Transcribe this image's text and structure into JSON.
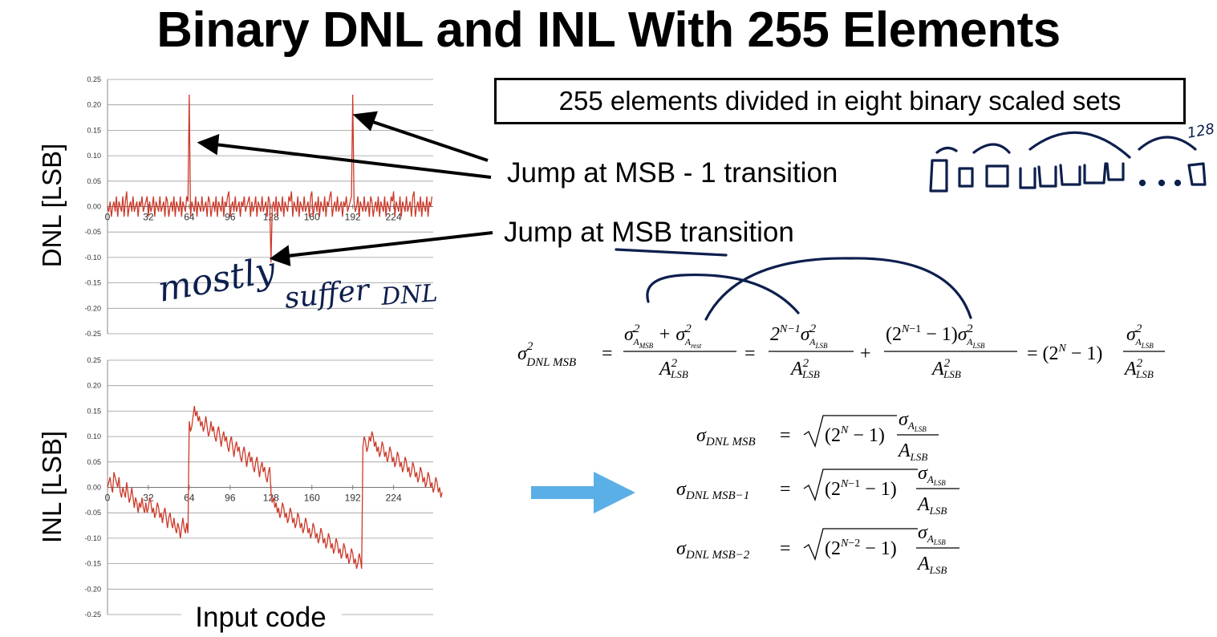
{
  "slide": {
    "title": "Binary DNL and INL With 255 Elements",
    "boxed_note": "255 elements divided in eight binary scaled sets",
    "callout_msb_minus_1": "Jump at MSB - 1 transition",
    "callout_msb": "Jump at MSB transition",
    "handwriting": {
      "note_words": [
        "mostly",
        "suffer",
        "DNL"
      ],
      "count": "128"
    },
    "colors": {
      "trace": "#cc3a2a",
      "ink": "#0d1f4d",
      "arrow_fill": "#5aafe6",
      "axis": "#888888"
    }
  },
  "chart_data": [
    {
      "type": "line",
      "title": "",
      "ylabel": "DNL [LSB]",
      "xlabel": "",
      "x_tick_labels": [
        "0",
        "32",
        "64",
        "96",
        "128",
        "160",
        "192",
        "224"
      ],
      "y_tick_labels": [
        "0.25",
        "0.20",
        "0.15",
        "0.10",
        "0.05",
        "0.00",
        "-0.05",
        "-0.10",
        "-0.15",
        "-0.20",
        "-0.25"
      ],
      "xlim": [
        0,
        255
      ],
      "ylim": [
        -0.25,
        0.25
      ],
      "grid": true,
      "series": [
        {
          "x_step": 1,
          "values": [
            0.0,
            -0.01,
            0.01,
            -0.02,
            0.0,
            0.01,
            -0.01,
            0.02,
            -0.02,
            0.01,
            0.0,
            -0.01,
            0.02,
            -0.02,
            0.01,
            0.03,
            -0.02,
            0.0,
            0.01,
            -0.01,
            0.02,
            -0.01,
            0.0,
            0.01,
            -0.02,
            0.01,
            0.0,
            0.02,
            -0.01,
            0.0,
            0.01,
            0.02,
            -0.02,
            0.01,
            -0.01,
            0.0,
            0.02,
            -0.02,
            0.01,
            0.0,
            -0.01,
            0.02,
            -0.01,
            0.0,
            0.01,
            -0.02,
            0.02,
            0.01,
            -0.02,
            0.0,
            0.01,
            -0.01,
            0.02,
            -0.02,
            0.01,
            0.0,
            -0.01,
            0.02,
            -0.02,
            0.01,
            0.0,
            -0.01,
            0.02,
            0.01,
            0.22,
            -0.02,
            0.01,
            0.0,
            -0.01,
            0.02,
            -0.02,
            0.01,
            0.0,
            -0.01,
            0.02,
            -0.01,
            0.0,
            0.01,
            -0.02,
            0.02,
            0.01,
            -0.02,
            0.0,
            0.01,
            -0.01,
            0.02,
            -0.02,
            0.01,
            0.0,
            -0.01,
            0.02,
            -0.02,
            0.01,
            0.0,
            0.02,
            0.03,
            -0.02,
            0.0,
            0.01,
            -0.01,
            0.02,
            -0.01,
            0.0,
            0.01,
            -0.02,
            0.01,
            0.0,
            0.02,
            -0.01,
            0.0,
            0.01,
            0.02,
            -0.02,
            0.01,
            -0.01,
            0.0,
            0.02,
            -0.02,
            0.01,
            0.0,
            -0.01,
            0.02,
            -0.01,
            0.0,
            0.01,
            -0.02,
            0.02,
            0.01,
            -0.11,
            0.0,
            0.01,
            -0.01,
            0.02,
            -0.02,
            0.01,
            0.0,
            -0.01,
            0.02,
            -0.02,
            0.01,
            0.0,
            -0.01,
            0.02,
            0.01,
            0.03,
            -0.02,
            0.01,
            0.0,
            -0.01,
            0.02,
            -0.02,
            0.01,
            0.0,
            -0.01,
            0.02,
            -0.01,
            0.0,
            0.01,
            -0.02,
            0.02,
            0.03,
            -0.02,
            0.0,
            0.01,
            -0.01,
            0.02,
            -0.02,
            0.01,
            0.0,
            -0.01,
            0.02,
            -0.02,
            0.01,
            0.0,
            0.02,
            0.03,
            -0.02,
            0.0,
            0.01,
            -0.01,
            0.02,
            -0.01,
            0.0,
            0.01,
            -0.02,
            0.01,
            0.0,
            0.02,
            -0.01,
            0.0,
            0.01,
            0.02,
            0.22,
            0.01,
            -0.01,
            0.0,
            0.02,
            -0.02,
            0.01,
            0.0,
            -0.01,
            0.02,
            -0.01,
            0.0,
            0.01,
            -0.02,
            0.02,
            0.01,
            -0.02,
            0.0,
            0.01,
            -0.01,
            0.02,
            -0.02,
            0.01,
            0.0,
            -0.01,
            0.02,
            -0.02,
            0.01,
            0.0,
            -0.01,
            0.02,
            0.01,
            0.03,
            -0.02,
            0.01,
            0.0,
            -0.01,
            0.02,
            -0.02,
            0.01,
            0.0,
            -0.01,
            0.02,
            -0.01,
            0.0,
            0.01,
            -0.02,
            0.02,
            0.03,
            -0.02,
            0.0,
            0.01,
            -0.01,
            0.02,
            -0.02,
            0.01,
            0.0,
            -0.01,
            0.02,
            -0.02,
            0.01,
            0.0,
            0.02
          ]
        }
      ]
    },
    {
      "type": "line",
      "title": "",
      "ylabel": "INL [LSB]",
      "xlabel": "Input code",
      "x_tick_labels": [
        "0",
        "32",
        "64",
        "96",
        "128",
        "160",
        "192",
        "224"
      ],
      "y_tick_labels": [
        "0.25",
        "0.20",
        "0.15",
        "0.10",
        "0.05",
        "0.00",
        "-0.05",
        "-0.10",
        "-0.15",
        "-0.20",
        "-0.25"
      ],
      "xlim": [
        0,
        255
      ],
      "ylim": [
        -0.25,
        0.25
      ],
      "grid": true,
      "series": [
        {
          "x_step": 1,
          "values": [
            0.0,
            0.01,
            0.02,
            0.0,
            -0.01,
            0.03,
            0.02,
            0.01,
            0.0,
            0.02,
            -0.01,
            -0.02,
            0.0,
            -0.01,
            -0.02,
            0.01,
            -0.01,
            -0.03,
            -0.02,
            0.0,
            -0.02,
            -0.04,
            -0.02,
            -0.03,
            -0.05,
            -0.03,
            -0.04,
            -0.02,
            -0.04,
            -0.05,
            -0.03,
            -0.05,
            -0.04,
            -0.02,
            -0.03,
            -0.05,
            -0.04,
            -0.06,
            -0.05,
            -0.03,
            -0.04,
            -0.06,
            -0.05,
            -0.07,
            -0.05,
            -0.04,
            -0.06,
            -0.08,
            -0.06,
            -0.05,
            -0.07,
            -0.08,
            -0.06,
            -0.08,
            -0.09,
            -0.07,
            -0.08,
            -0.1,
            -0.08,
            -0.06,
            -0.08,
            -0.09,
            -0.07,
            -0.09,
            0.13,
            0.11,
            0.12,
            0.14,
            0.16,
            0.14,
            0.15,
            0.13,
            0.14,
            0.12,
            0.13,
            0.11,
            0.12,
            0.14,
            0.12,
            0.1,
            0.11,
            0.13,
            0.11,
            0.12,
            0.1,
            0.09,
            0.11,
            0.12,
            0.1,
            0.08,
            0.1,
            0.11,
            0.09,
            0.1,
            0.08,
            0.07,
            0.09,
            0.1,
            0.08,
            0.06,
            0.08,
            0.09,
            0.07,
            0.08,
            0.06,
            0.05,
            0.07,
            0.08,
            0.06,
            0.04,
            0.06,
            0.07,
            0.05,
            0.06,
            0.04,
            0.03,
            0.05,
            0.06,
            0.04,
            0.02,
            0.04,
            0.05,
            0.03,
            0.04,
            0.02,
            0.01,
            0.03,
            0.04,
            -0.01,
            -0.03,
            -0.02,
            -0.04,
            -0.03,
            -0.05,
            -0.04,
            -0.06,
            -0.05,
            -0.03,
            -0.04,
            -0.06,
            -0.05,
            -0.07,
            -0.06,
            -0.04,
            -0.05,
            -0.07,
            -0.06,
            -0.08,
            -0.07,
            -0.05,
            -0.06,
            -0.08,
            -0.07,
            -0.09,
            -0.08,
            -0.06,
            -0.07,
            -0.09,
            -0.08,
            -0.1,
            -0.09,
            -0.07,
            -0.08,
            -0.1,
            -0.09,
            -0.11,
            -0.1,
            -0.08,
            -0.09,
            -0.11,
            -0.1,
            -0.12,
            -0.11,
            -0.09,
            -0.1,
            -0.12,
            -0.11,
            -0.13,
            -0.12,
            -0.1,
            -0.11,
            -0.13,
            -0.12,
            -0.14,
            -0.13,
            -0.11,
            -0.12,
            -0.14,
            -0.13,
            -0.15,
            -0.14,
            -0.12,
            -0.13,
            -0.15,
            -0.14,
            -0.16,
            -0.15,
            -0.13,
            -0.14,
            -0.16,
            0.08,
            0.1,
            0.09,
            0.07,
            0.08,
            0.1,
            0.09,
            0.11,
            0.1,
            0.08,
            0.09,
            0.07,
            0.08,
            0.06,
            0.07,
            0.09,
            0.08,
            0.06,
            0.07,
            0.05,
            0.06,
            0.08,
            0.07,
            0.05,
            0.06,
            0.04,
            0.05,
            0.07,
            0.06,
            0.04,
            0.05,
            0.03,
            0.04,
            0.06,
            0.05,
            0.03,
            0.04,
            0.02,
            0.03,
            0.05,
            0.04,
            0.02,
            0.03,
            0.01,
            0.02,
            0.04,
            0.03,
            0.01,
            0.02,
            0.0,
            0.01,
            0.03,
            0.02,
            0.0,
            0.01,
            -0.01,
            0.0,
            0.02,
            0.01,
            -0.01,
            0.0,
            -0.02,
            -0.01
          ]
        }
      ]
    }
  ]
}
